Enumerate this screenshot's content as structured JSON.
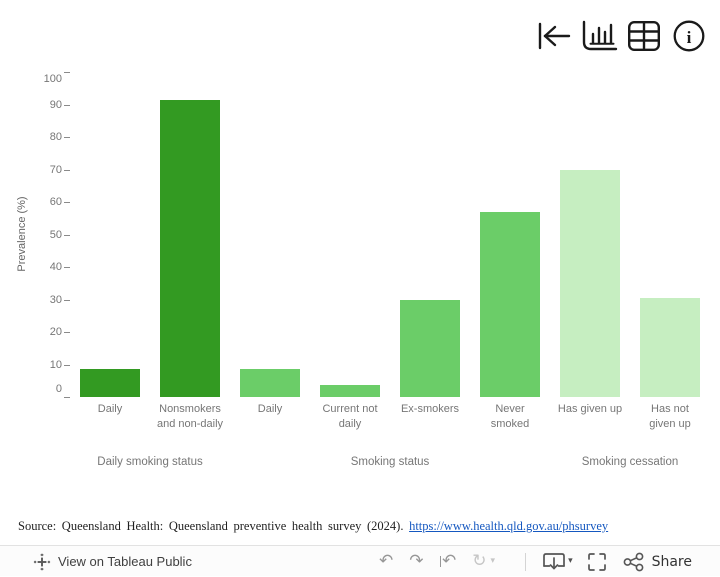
{
  "top_toolbar": {
    "icons": [
      "jump-to-start-icon",
      "bar-chart-icon",
      "data-table-icon",
      "info-icon"
    ]
  },
  "chart_data": {
    "type": "bar",
    "title": "",
    "ylabel": "Prevalence (%)",
    "xlabel": "",
    "ylim": [
      0,
      100
    ],
    "yticks": [
      0,
      10,
      20,
      30,
      40,
      50,
      60,
      70,
      80,
      90,
      100
    ],
    "grid": false,
    "legend": "none",
    "axis_text_color": "#767676",
    "groups": [
      {
        "label": "Daily smoking status",
        "color": "#339A22",
        "bars": [
          {
            "label": "Daily",
            "lines": [
              "Daily"
            ],
            "value": 8.5
          },
          {
            "label": "Nonsmokers and non-daily",
            "lines": [
              "Nonsmokers",
              "and non-daily"
            ],
            "value": 91.5
          }
        ]
      },
      {
        "label": "Smoking status",
        "color": "#6BCD68",
        "bars": [
          {
            "label": "Daily",
            "lines": [
              "Daily"
            ],
            "value": 8.6
          },
          {
            "label": "Current not daily",
            "lines": [
              "Current not",
              "daily"
            ],
            "value": 3.8
          },
          {
            "label": "Ex-smokers",
            "lines": [
              "Ex-smokers"
            ],
            "value": 30
          },
          {
            "label": "Never smoked",
            "lines": [
              "Never",
              "smoked"
            ],
            "value": 57
          }
        ]
      },
      {
        "label": "Smoking cessation",
        "color": "#C6EEC1",
        "bars": [
          {
            "label": "Has given up",
            "lines": [
              "Has given up"
            ],
            "value": 70
          },
          {
            "label": "Has not given up",
            "lines": [
              "Has not",
              "given up"
            ],
            "value": 30.5
          }
        ]
      }
    ]
  },
  "source_note": {
    "text": "Source:  Queensland  Health:  Queensland  preventive  health  survey  (2024). ",
    "link_text": "https://www.health.qld.gov.au/phsurvey",
    "link_color": "#1558c0"
  },
  "footer": {
    "logo_icon": "tableau-logo",
    "view_label": "View on Tableau Public",
    "share_label": "Share",
    "undo_glyph": "↶",
    "redo_glyph": "↷",
    "revert_glyph": "↶",
    "refresh_glyph": "↻",
    "caret_glyph": "▾",
    "control_icons": [
      "undo-icon",
      "redo-icon",
      "revert-icon",
      "refresh-icon",
      "download-icon",
      "fullscreen-icon",
      "share-icon"
    ]
  }
}
